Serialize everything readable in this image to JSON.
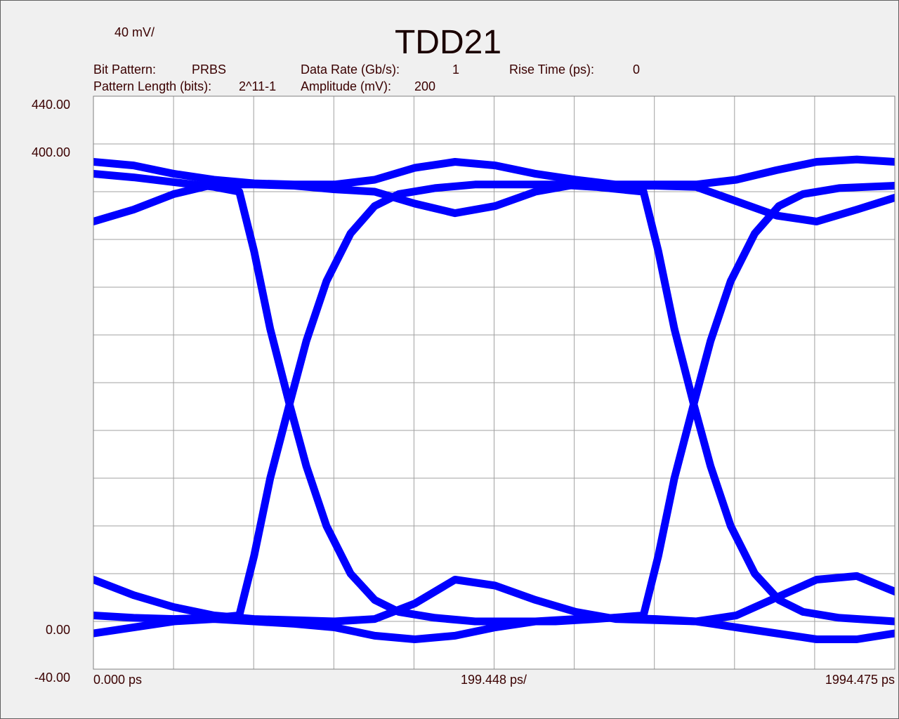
{
  "chart_data": {
    "type": "eye",
    "title": "TDD21",
    "y_division": "40 mV/",
    "x_division": "199.448 ps/",
    "info": [
      {
        "label": "Bit Pattern:",
        "value": "PRBS"
      },
      {
        "label": "Data Rate (Gb/s):",
        "value": 1
      },
      {
        "label": "Rise Time (ps):",
        "value": 0
      },
      {
        "label": "Pattern Length (bits):",
        "value": "2^11-1"
      },
      {
        "label": "Amplitude (mV):",
        "value": 200
      }
    ],
    "xlim": [
      0,
      1994.475
    ],
    "ylim": [
      -40,
      440
    ],
    "xticks": [
      {
        "value": 0,
        "label": "0.000 ps"
      },
      {
        "value": 1994.475,
        "label": "1994.475 ps"
      }
    ],
    "yticks": [
      {
        "value": -40,
        "label": "-40.00"
      },
      {
        "value": 0,
        "label": "0.00"
      },
      {
        "value": 400,
        "label": "400.00"
      },
      {
        "value": 440,
        "label": "440.00"
      }
    ],
    "grid": true,
    "series": [
      {
        "color": "#0000ff",
        "x": [
          0,
          100,
          200,
          300,
          363,
          400,
          440,
          488,
          530,
          580,
          640,
          700,
          760,
          850,
          950,
          1050,
          1150,
          1250,
          1369,
          1406,
          1446,
          1494,
          1536,
          1586,
          1646,
          1706,
          1766,
          1856,
          1994.475
        ],
        "values": [
          375,
          372,
          368,
          364,
          360,
          310,
          245,
          182,
          130,
          80,
          40,
          18,
          8,
          3,
          0,
          0,
          0,
          2,
          5,
          55,
          120,
          182,
          235,
          285,
          325,
          348,
          358,
          363,
          365
        ]
      },
      {
        "color": "#0000ff",
        "x": [
          0,
          100,
          200,
          300,
          363,
          400,
          440,
          488,
          530,
          580,
          640,
          700,
          760,
          850,
          950,
          1050,
          1150,
          1250,
          1369,
          1406,
          1446,
          1494,
          1536,
          1586,
          1646,
          1706,
          1766,
          1856,
          1994.475
        ],
        "values": [
          5,
          3,
          2,
          3,
          5,
          55,
          120,
          182,
          235,
          285,
          325,
          348,
          358,
          363,
          366,
          366,
          366,
          364,
          360,
          310,
          245,
          182,
          130,
          80,
          40,
          18,
          8,
          3,
          0
        ]
      },
      {
        "color": "#0000ff",
        "x": [
          0,
          100,
          200,
          300,
          400,
          500,
          600,
          700,
          800,
          900,
          1000,
          1100,
          1200,
          1300,
          1400,
          1500,
          1600,
          1700,
          1800,
          1900,
          1994.475
        ],
        "values": [
          335,
          345,
          358,
          366,
          366,
          365,
          362,
          360,
          350,
          342,
          348,
          360,
          366,
          365,
          365,
          364,
          352,
          340,
          335,
          345,
          355
        ]
      },
      {
        "color": "#0000ff",
        "x": [
          0,
          100,
          200,
          300,
          400,
          500,
          600,
          700,
          800,
          900,
          1000,
          1100,
          1200,
          1300,
          1400,
          1500,
          1600,
          1700,
          1800,
          1900,
          1994.475
        ],
        "values": [
          385,
          382,
          375,
          370,
          367,
          366,
          366,
          370,
          380,
          385,
          382,
          375,
          370,
          366,
          366,
          366,
          370,
          378,
          385,
          387,
          385
        ]
      },
      {
        "color": "#0000ff",
        "x": [
          0,
          100,
          200,
          300,
          400,
          500,
          600,
          700,
          800,
          900,
          1000,
          1100,
          1200,
          1300,
          1400,
          1500,
          1600,
          1700,
          1800,
          1900,
          1994.475
        ],
        "values": [
          35,
          22,
          12,
          5,
          2,
          1,
          0,
          2,
          15,
          35,
          30,
          18,
          8,
          2,
          1,
          0,
          5,
          20,
          35,
          38,
          25
        ]
      },
      {
        "color": "#0000ff",
        "x": [
          0,
          100,
          200,
          300,
          400,
          500,
          600,
          700,
          800,
          900,
          1000,
          1100,
          1200,
          1300,
          1400,
          1500,
          1600,
          1700,
          1800,
          1900,
          1994.475
        ],
        "values": [
          -10,
          -5,
          0,
          2,
          0,
          -2,
          -5,
          -12,
          -15,
          -12,
          -5,
          0,
          2,
          3,
          2,
          0,
          -5,
          -10,
          -15,
          -15,
          -10
        ]
      }
    ]
  }
}
